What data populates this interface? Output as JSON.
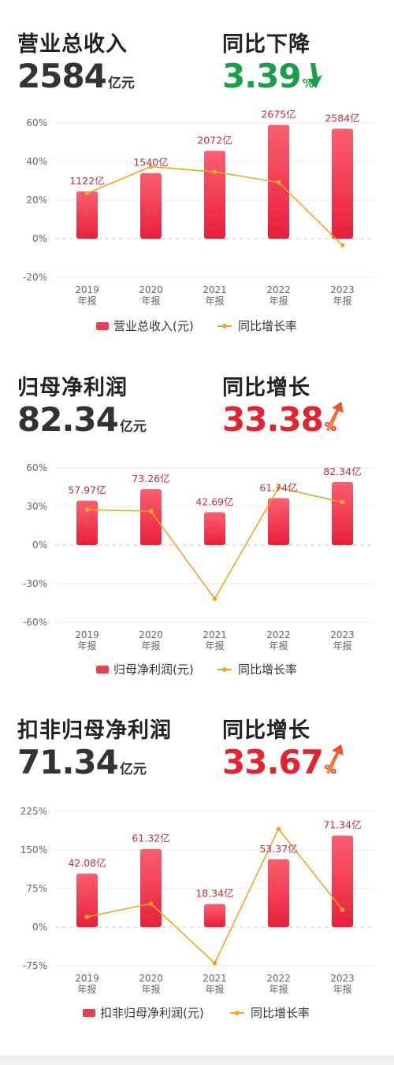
{
  "colors": {
    "bar_top": "#fb5f70",
    "bar_bottom": "#e91f3b",
    "line": "#e8a825",
    "label": "#b8323f",
    "down": "#1a9e4a",
    "up": "#e3242f"
  },
  "sections": [
    {
      "metric_label": "营业总收入",
      "metric_value": "2584",
      "metric_unit": "亿元",
      "change_label": "同比下降",
      "change_value": "3.39",
      "change_unit": "%",
      "direction": "down",
      "legend_bar": "营业总收入(元)",
      "legend_line": "同比增长率"
    },
    {
      "metric_label": "归母净利润",
      "metric_value": "82.34",
      "metric_unit": "亿元",
      "change_label": "同比增长",
      "change_value": "33.38",
      "change_unit": "%",
      "direction": "up",
      "legend_bar": "归母净利润(元)",
      "legend_line": "同比增长率"
    },
    {
      "metric_label": "扣非归母净利润",
      "metric_value": "71.34",
      "metric_unit": "亿元",
      "change_label": "同比增长",
      "change_value": "33.67",
      "change_unit": "%",
      "direction": "up",
      "legend_bar": "扣非归母净利润(元)",
      "legend_line": "同比增长率"
    }
  ],
  "chart_data": [
    {
      "type": "bar",
      "categories": [
        "2019\n年报",
        "2020\n年报",
        "2021\n年报",
        "2022\n年报",
        "2023\n年报"
      ],
      "series": [
        {
          "name": "营业总收入(元)",
          "kind": "bar",
          "values": [
            24.5,
            34,
            45.5,
            59,
            57
          ],
          "labels": [
            "1122亿",
            "1540亿",
            "2072亿",
            "2675亿",
            "2584亿"
          ]
        },
        {
          "name": "同比增长率",
          "kind": "line",
          "values": [
            23.5,
            37.3,
            34.6,
            29.2,
            -3.39
          ]
        }
      ],
      "yticks": [
        60,
        40,
        20,
        0,
        -20
      ],
      "ytick_labels": [
        "60%",
        "40%",
        "20%",
        "0%",
        "-20%"
      ],
      "ylim": [
        -20,
        60
      ],
      "legend": "bottom"
    },
    {
      "type": "bar",
      "categories": [
        "2019\n年报",
        "2020\n年报",
        "2021\n年报",
        "2022\n年报",
        "2023\n年报"
      ],
      "series": [
        {
          "name": "归母净利润(元)",
          "kind": "bar",
          "values": [
            34.5,
            43.5,
            25.5,
            36.5,
            49
          ],
          "labels": [
            "57.97亿",
            "73.26亿",
            "42.69亿",
            "61.74亿",
            "82.34亿"
          ]
        },
        {
          "name": "同比增长率",
          "kind": "line",
          "values": [
            27.5,
            26.4,
            -41.7,
            44.6,
            33.38
          ]
        }
      ],
      "yticks": [
        60,
        30,
        0,
        -30,
        -60
      ],
      "ytick_labels": [
        "60%",
        "30%",
        "0%",
        "-30%",
        "-60%"
      ],
      "ylim": [
        -60,
        60
      ],
      "legend": "bottom"
    },
    {
      "type": "bar",
      "categories": [
        "2019\n年报",
        "2020\n年报",
        "2021\n年报",
        "2022\n年报",
        "2023\n年报"
      ],
      "series": [
        {
          "name": "扣非归母净利润(元)",
          "kind": "bar",
          "values": [
            104,
            152,
            45,
            132,
            178
          ],
          "labels": [
            "42.08亿",
            "61.32亿",
            "18.34亿",
            "53.37亿",
            "71.34亿"
          ]
        },
        {
          "name": "同比增长率",
          "kind": "line",
          "values": [
            20,
            45.7,
            -70.1,
            191,
            33.67
          ]
        }
      ],
      "yticks": [
        225,
        150,
        75,
        0,
        -75
      ],
      "ytick_labels": [
        "225%",
        "150%",
        "75%",
        "0%",
        "-75%"
      ],
      "ylim": [
        -75,
        225
      ],
      "legend": "bottom"
    }
  ]
}
